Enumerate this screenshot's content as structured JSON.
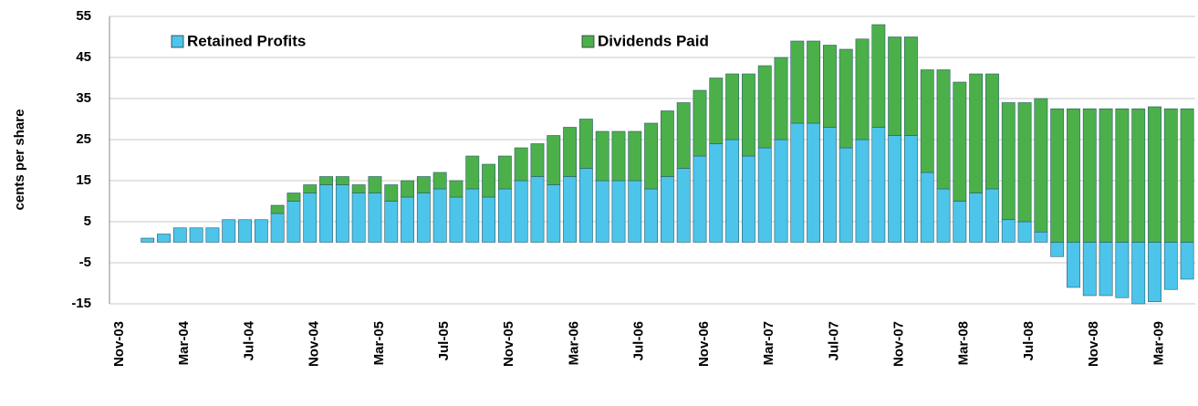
{
  "chart_data": {
    "type": "stacked_bar",
    "y_label": "cents per share",
    "categories": [
      "Nov-03",
      null,
      null,
      null,
      "Mar-04",
      null,
      null,
      null,
      "Jul-04",
      null,
      null,
      null,
      "Nov-04",
      null,
      null,
      null,
      "Mar-05",
      null,
      null,
      null,
      "Jul-05",
      null,
      null,
      null,
      "Nov-05",
      null,
      null,
      null,
      "Mar-06",
      null,
      null,
      null,
      "Jul-06",
      null,
      null,
      null,
      "Nov-06",
      null,
      null,
      null,
      "Mar-07",
      null,
      null,
      null,
      "Jul-07",
      null,
      null,
      null,
      "Nov-07",
      null,
      null,
      null,
      "Mar-08",
      null,
      null,
      null,
      "Jul-08",
      null,
      null,
      null,
      "Nov-08",
      null,
      null,
      null,
      "Mar-09",
      null
    ],
    "series": [
      {
        "name": "Retained Profits",
        "color": "#4dc4ea",
        "values": [
          null,
          1,
          2,
          3.5,
          3.5,
          3.5,
          5.5,
          5.5,
          5.5,
          7,
          10,
          12,
          14,
          14,
          12,
          12,
          10,
          11,
          12,
          13,
          11,
          13,
          11,
          13,
          15,
          16,
          14,
          16,
          18,
          15,
          15,
          15,
          13,
          16,
          18,
          21,
          24,
          25,
          21,
          23,
          25,
          29,
          29,
          28,
          23,
          25,
          28,
          26,
          26,
          17,
          13,
          10,
          12,
          13,
          5.5,
          5,
          2.5,
          -3.5,
          -11,
          -13,
          -13,
          -13.5,
          -15,
          -14.5,
          -11.5,
          -9
        ]
      },
      {
        "name": "Dividends Paid",
        "color": "#4cb04a",
        "values": [
          null,
          0,
          0,
          0,
          0,
          0,
          0,
          0,
          0,
          2,
          2,
          2,
          2,
          2,
          2,
          4,
          4,
          4,
          4,
          4,
          4,
          8,
          8,
          8,
          8,
          8,
          12,
          12,
          12,
          12,
          12,
          12,
          16,
          16,
          16,
          16,
          16,
          16,
          20,
          20,
          20,
          20,
          20,
          20,
          24,
          24.5,
          25,
          24,
          24,
          25,
          29,
          29,
          29,
          28,
          28.5,
          29,
          32.5,
          32.5,
          32.5,
          32.5,
          32.5,
          32.5,
          32.5,
          33,
          32.5,
          32.5
        ]
      }
    ],
    "ylim": [
      -15,
      55
    ],
    "yticks": [
      -15,
      -5,
      5,
      15,
      25,
      35,
      45,
      55
    ],
    "grid": true,
    "legend": "top"
  }
}
